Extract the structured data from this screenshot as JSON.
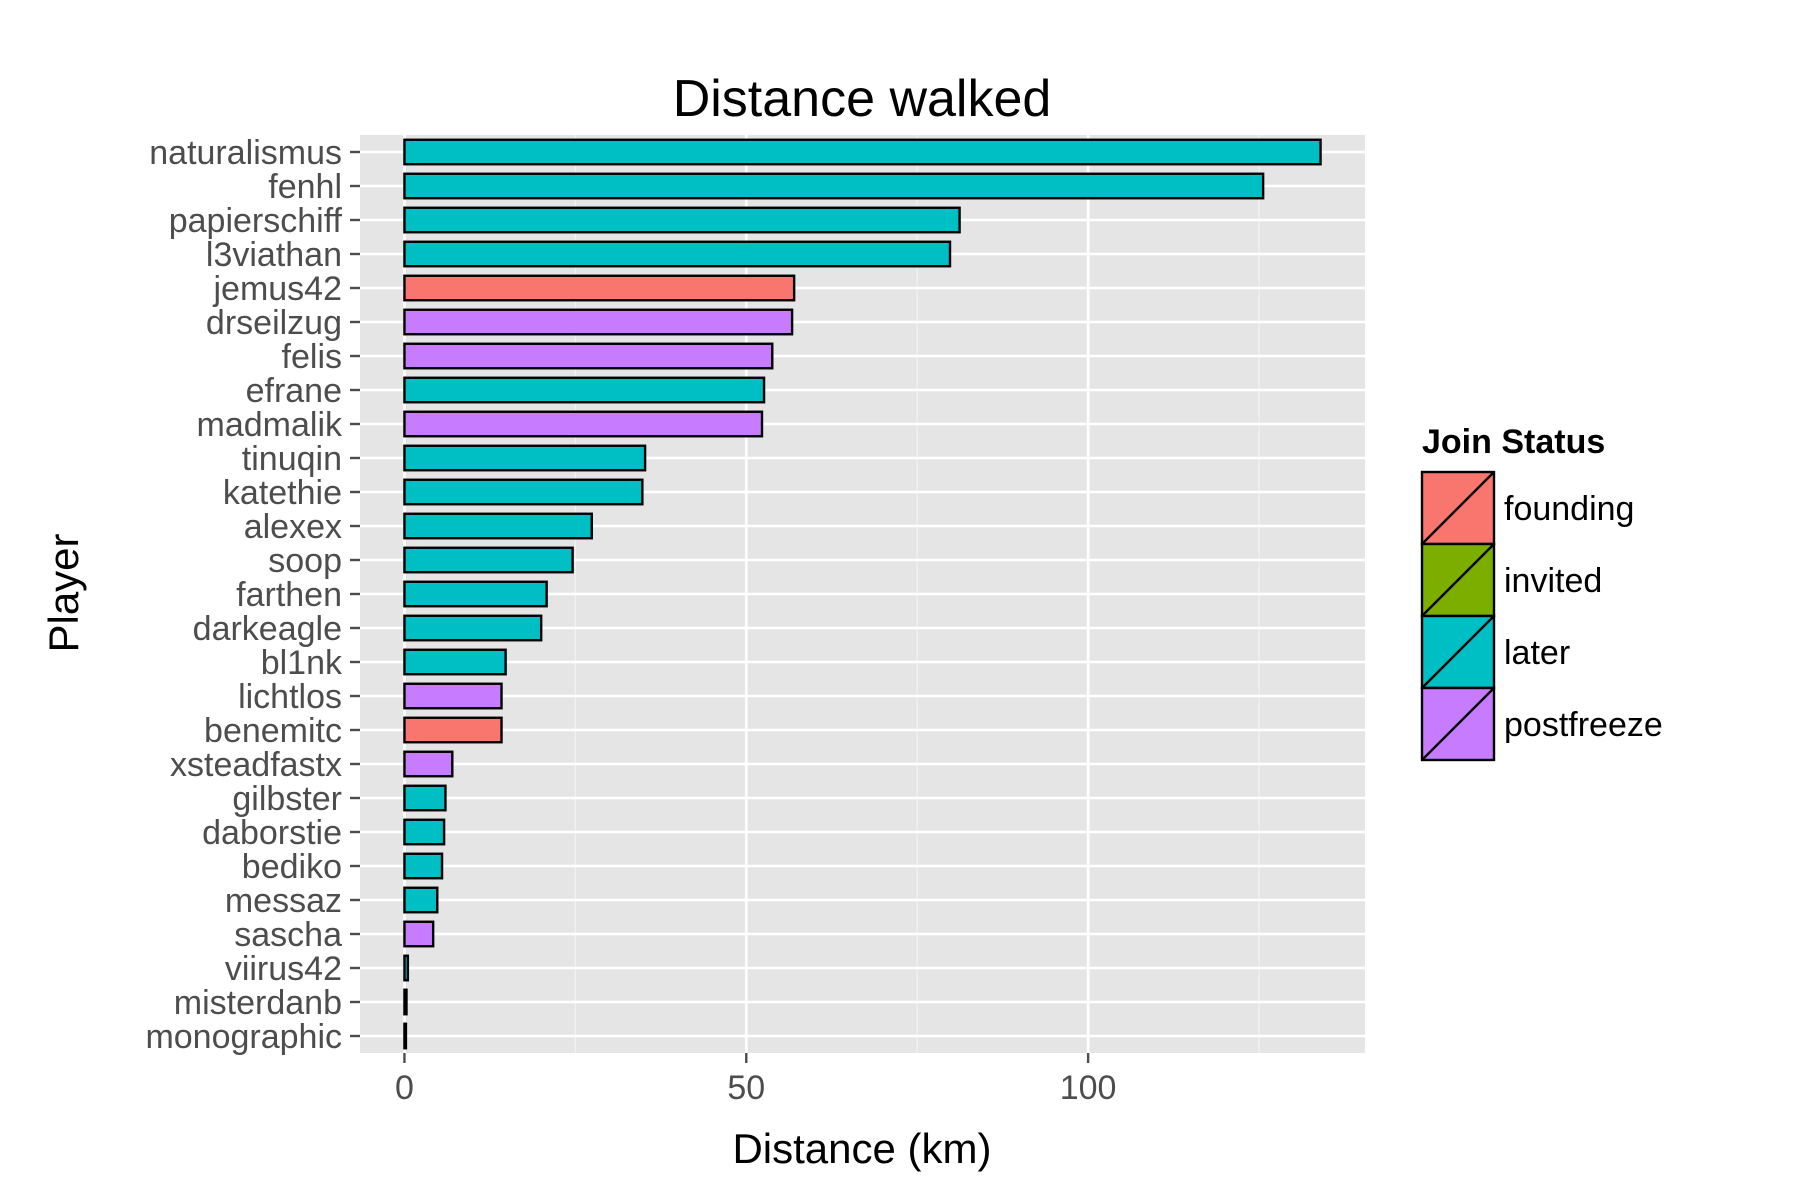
{
  "chart_data": {
    "type": "bar",
    "orientation": "horizontal",
    "title": "Distance walked",
    "xlabel": "Distance (km)",
    "ylabel": "Player",
    "xlim": [
      -6.5,
      140.5
    ],
    "xticks": [
      0,
      50,
      100
    ],
    "grid": true,
    "legend": {
      "title": "Join Status",
      "placement": "right",
      "entries": [
        {
          "name": "founding",
          "color": "#F8766D"
        },
        {
          "name": "invited",
          "color": "#7CAE00"
        },
        {
          "name": "later",
          "color": "#00BFC4"
        },
        {
          "name": "postfreeze",
          "color": "#C77CFF"
        }
      ]
    },
    "bars": [
      {
        "player": "naturalismus",
        "value": 134,
        "status": "later"
      },
      {
        "player": "fenhl",
        "value": 125.6,
        "status": "later"
      },
      {
        "player": "papierschiff",
        "value": 81.2,
        "status": "later"
      },
      {
        "player": "l3viathan",
        "value": 79.8,
        "status": "later"
      },
      {
        "player": "jemus42",
        "value": 57,
        "status": "founding"
      },
      {
        "player": "drseilzug",
        "value": 56.7,
        "status": "postfreeze"
      },
      {
        "player": "felis",
        "value": 53.8,
        "status": "postfreeze"
      },
      {
        "player": "efrane",
        "value": 52.6,
        "status": "later"
      },
      {
        "player": "madmalik",
        "value": 52.3,
        "status": "postfreeze"
      },
      {
        "player": "tinuqin",
        "value": 35.2,
        "status": "later"
      },
      {
        "player": "katethie",
        "value": 34.8,
        "status": "later"
      },
      {
        "player": "alexex",
        "value": 27.4,
        "status": "later"
      },
      {
        "player": "soop",
        "value": 24.6,
        "status": "later"
      },
      {
        "player": "farthen",
        "value": 20.8,
        "status": "later"
      },
      {
        "player": "darkeagle",
        "value": 20,
        "status": "later"
      },
      {
        "player": "bl1nk",
        "value": 14.8,
        "status": "later"
      },
      {
        "player": "lichtlos",
        "value": 14.2,
        "status": "postfreeze"
      },
      {
        "player": "benemitc",
        "value": 14.2,
        "status": "founding"
      },
      {
        "player": "xsteadfastx",
        "value": 7,
        "status": "postfreeze"
      },
      {
        "player": "gilbster",
        "value": 6,
        "status": "later"
      },
      {
        "player": "daborstie",
        "value": 5.8,
        "status": "later"
      },
      {
        "player": "bediko",
        "value": 5.5,
        "status": "later"
      },
      {
        "player": "messaz",
        "value": 4.8,
        "status": "later"
      },
      {
        "player": "sascha",
        "value": 4.2,
        "status": "postfreeze"
      },
      {
        "player": "viirus42",
        "value": 0.5,
        "status": "later"
      },
      {
        "player": "misterdanb",
        "value": 0.3,
        "status": "later"
      },
      {
        "player": "monographic",
        "value": 0.1,
        "status": "later"
      }
    ]
  }
}
